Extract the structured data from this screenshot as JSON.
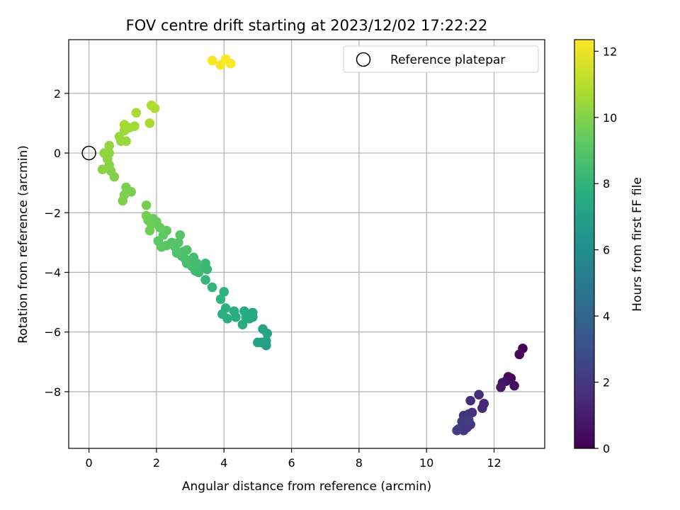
{
  "chart_data": {
    "type": "scatter",
    "title": "FOV centre drift starting at 2023/12/02 17:22:22",
    "xlabel": "Angular distance from reference (arcmin)",
    "ylabel": "Rotation from reference (arcmin)",
    "xlim": [
      -0.6,
      13.5
    ],
    "ylim": [
      -9.9,
      3.8
    ],
    "xticks": [
      0,
      2,
      4,
      6,
      8,
      10,
      12
    ],
    "yticks": [
      -8,
      -6,
      -4,
      -2,
      0,
      2
    ],
    "grid": true,
    "colormap": "viridis",
    "legend": {
      "placement": "top-right",
      "entries": [
        "Reference platepar"
      ]
    },
    "reference_point": {
      "x": 0,
      "y": 0,
      "marker": "open-circle"
    },
    "colorbar": {
      "label": "Hours from first FF file",
      "range": [
        0,
        12.35
      ],
      "ticks": [
        0,
        2,
        4,
        6,
        8,
        10,
        12
      ]
    },
    "points": [
      {
        "x": 12.85,
        "y": -6.55,
        "h": 0.1
      },
      {
        "x": 12.75,
        "y": -6.75,
        "h": 0.2
      },
      {
        "x": 12.5,
        "y": -7.55,
        "h": 0.3
      },
      {
        "x": 12.42,
        "y": -7.5,
        "h": 0.4
      },
      {
        "x": 12.35,
        "y": -7.65,
        "h": 0.5
      },
      {
        "x": 12.6,
        "y": -7.8,
        "h": 0.6
      },
      {
        "x": 12.25,
        "y": -7.7,
        "h": 0.7
      },
      {
        "x": 12.2,
        "y": -7.85,
        "h": 0.8
      },
      {
        "x": 11.7,
        "y": -8.4,
        "h": 1.3
      },
      {
        "x": 11.65,
        "y": -8.55,
        "h": 1.4
      },
      {
        "x": 11.55,
        "y": -8.1,
        "h": 1.5
      },
      {
        "x": 11.3,
        "y": -8.3,
        "h": 1.6
      },
      {
        "x": 11.35,
        "y": -8.7,
        "h": 1.7
      },
      {
        "x": 11.25,
        "y": -8.75,
        "h": 1.75
      },
      {
        "x": 11.15,
        "y": -8.9,
        "h": 1.8
      },
      {
        "x": 11.1,
        "y": -8.8,
        "h": 1.85
      },
      {
        "x": 11.3,
        "y": -9.1,
        "h": 1.9
      },
      {
        "x": 11.2,
        "y": -9.2,
        "h": 1.95
      },
      {
        "x": 11.1,
        "y": -9.3,
        "h": 2.0
      },
      {
        "x": 10.95,
        "y": -9.25,
        "h": 2.05
      },
      {
        "x": 11.05,
        "y": -9.0,
        "h": 2.1
      },
      {
        "x": 11.25,
        "y": -8.95,
        "h": 2.15
      },
      {
        "x": 10.9,
        "y": -9.3,
        "h": 2.2
      },
      {
        "x": 5.25,
        "y": -6.45,
        "h": 6.9
      },
      {
        "x": 5.25,
        "y": -6.3,
        "h": 7.0
      },
      {
        "x": 5.1,
        "y": -6.35,
        "h": 7.05
      },
      {
        "x": 5.0,
        "y": -6.35,
        "h": 7.1
      },
      {
        "x": 5.28,
        "y": -6.05,
        "h": 7.15
      },
      {
        "x": 5.15,
        "y": -5.9,
        "h": 7.2
      },
      {
        "x": 4.85,
        "y": -5.5,
        "h": 7.35
      },
      {
        "x": 4.75,
        "y": -5.55,
        "h": 7.4
      },
      {
        "x": 4.85,
        "y": -5.35,
        "h": 7.45
      },
      {
        "x": 4.6,
        "y": -5.3,
        "h": 7.5
      },
      {
        "x": 4.55,
        "y": -5.75,
        "h": 7.55
      },
      {
        "x": 4.65,
        "y": -5.5,
        "h": 7.6
      },
      {
        "x": 4.35,
        "y": -5.5,
        "h": 7.65
      },
      {
        "x": 4.3,
        "y": -5.3,
        "h": 7.7
      },
      {
        "x": 4.1,
        "y": -5.55,
        "h": 7.75
      },
      {
        "x": 3.95,
        "y": -5.4,
        "h": 7.8
      },
      {
        "x": 4.05,
        "y": -5.2,
        "h": 7.85
      },
      {
        "x": 4.0,
        "y": -4.65,
        "h": 7.9
      },
      {
        "x": 3.9,
        "y": -4.9,
        "h": 7.95
      },
      {
        "x": 3.65,
        "y": -4.5,
        "h": 8.05
      },
      {
        "x": 3.45,
        "y": -4.25,
        "h": 8.15
      },
      {
        "x": 3.5,
        "y": -3.9,
        "h": 8.2
      },
      {
        "x": 3.45,
        "y": -3.7,
        "h": 8.25
      },
      {
        "x": 3.3,
        "y": -3.85,
        "h": 8.3
      },
      {
        "x": 3.25,
        "y": -4.0,
        "h": 8.35
      },
      {
        "x": 3.15,
        "y": -3.95,
        "h": 8.4
      },
      {
        "x": 3.05,
        "y": -3.8,
        "h": 8.45
      },
      {
        "x": 3.2,
        "y": -3.7,
        "h": 8.5
      },
      {
        "x": 3.1,
        "y": -3.5,
        "h": 8.55
      },
      {
        "x": 2.9,
        "y": -3.7,
        "h": 8.6
      },
      {
        "x": 2.85,
        "y": -3.55,
        "h": 8.65
      },
      {
        "x": 2.75,
        "y": -3.45,
        "h": 8.7
      },
      {
        "x": 2.8,
        "y": -3.3,
        "h": 8.75
      },
      {
        "x": 2.9,
        "y": -3.25,
        "h": 8.8
      },
      {
        "x": 2.6,
        "y": -3.35,
        "h": 8.85
      },
      {
        "x": 2.55,
        "y": -3.15,
        "h": 8.9
      },
      {
        "x": 2.45,
        "y": -3.0,
        "h": 8.95
      },
      {
        "x": 2.65,
        "y": -3.0,
        "h": 9.0
      },
      {
        "x": 2.7,
        "y": -2.75,
        "h": 9.05
      },
      {
        "x": 2.3,
        "y": -3.1,
        "h": 9.1
      },
      {
        "x": 2.15,
        "y": -3.15,
        "h": 9.15
      },
      {
        "x": 2.05,
        "y": -2.95,
        "h": 9.2
      },
      {
        "x": 2.2,
        "y": -2.75,
        "h": 9.25
      },
      {
        "x": 2.3,
        "y": -2.6,
        "h": 9.3
      },
      {
        "x": 2.1,
        "y": -2.5,
        "h": 9.35
      },
      {
        "x": 2.0,
        "y": -2.3,
        "h": 9.4
      },
      {
        "x": 1.9,
        "y": -2.2,
        "h": 9.45
      },
      {
        "x": 1.75,
        "y": -2.25,
        "h": 9.5
      },
      {
        "x": 1.85,
        "y": -2.4,
        "h": 9.55
      },
      {
        "x": 1.8,
        "y": -2.6,
        "h": 9.6
      },
      {
        "x": 1.7,
        "y": -2.1,
        "h": 9.65
      },
      {
        "x": 1.7,
        "y": -1.75,
        "h": 9.7
      },
      {
        "x": 1.25,
        "y": -1.3,
        "h": 9.75
      },
      {
        "x": 1.1,
        "y": -1.15,
        "h": 9.8
      },
      {
        "x": 1.05,
        "y": -1.4,
        "h": 9.85
      },
      {
        "x": 1.0,
        "y": -1.6,
        "h": 9.9
      },
      {
        "x": 0.75,
        "y": -0.8,
        "h": 9.95
      },
      {
        "x": 0.65,
        "y": -0.6,
        "h": 10.0
      },
      {
        "x": 0.6,
        "y": -0.4,
        "h": 10.05
      },
      {
        "x": 0.4,
        "y": -0.55,
        "h": 10.1
      },
      {
        "x": 0.55,
        "y": -0.2,
        "h": 10.15
      },
      {
        "x": 0.45,
        "y": 0.0,
        "h": 10.2
      },
      {
        "x": 0.6,
        "y": 0.0,
        "h": 10.25
      },
      {
        "x": 0.6,
        "y": 0.25,
        "h": 10.3
      },
      {
        "x": 0.95,
        "y": 0.4,
        "h": 10.35
      },
      {
        "x": 1.1,
        "y": 0.4,
        "h": 10.4
      },
      {
        "x": 0.9,
        "y": 0.55,
        "h": 10.45
      },
      {
        "x": 1.05,
        "y": 0.75,
        "h": 10.5
      },
      {
        "x": 1.2,
        "y": 0.85,
        "h": 10.55
      },
      {
        "x": 1.35,
        "y": 0.9,
        "h": 10.6
      },
      {
        "x": 1.05,
        "y": 0.95,
        "h": 10.65
      },
      {
        "x": 1.4,
        "y": 1.35,
        "h": 10.7
      },
      {
        "x": 1.8,
        "y": 1.0,
        "h": 10.75
      },
      {
        "x": 1.85,
        "y": 1.6,
        "h": 10.8
      },
      {
        "x": 1.95,
        "y": 1.5,
        "h": 10.85
      },
      {
        "x": 3.65,
        "y": 3.1,
        "h": 12.2
      },
      {
        "x": 3.9,
        "y": 2.95,
        "h": 12.25
      },
      {
        "x": 4.05,
        "y": 3.15,
        "h": 12.3
      },
      {
        "x": 4.2,
        "y": 3.0,
        "h": 12.3
      }
    ]
  }
}
